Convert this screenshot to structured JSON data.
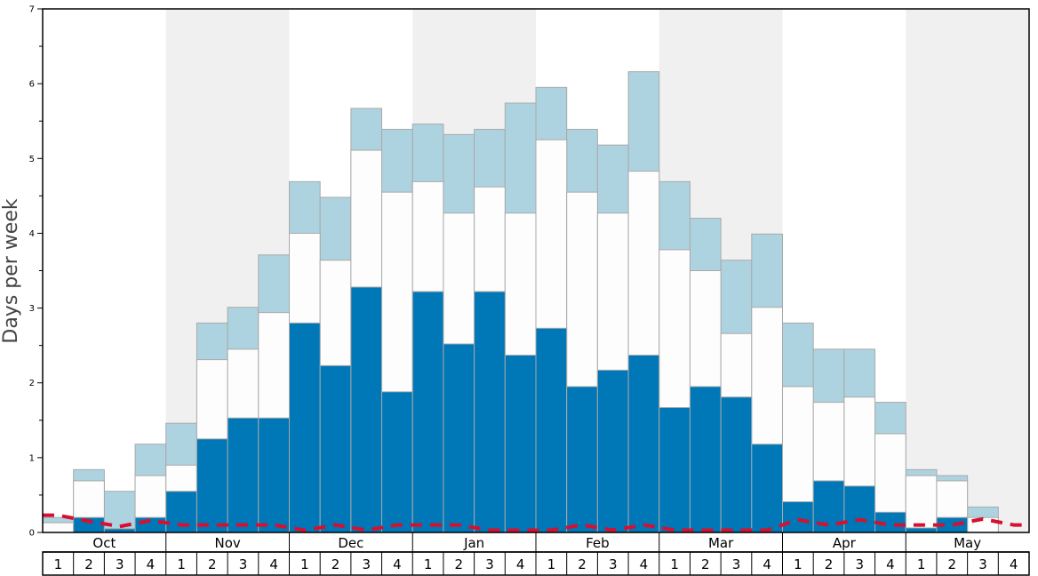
{
  "chart_data": {
    "type": "bar",
    "ylabel": "Days per week",
    "ylim": [
      0,
      7
    ],
    "y_ticks": [
      "0",
      "1",
      "2",
      "3",
      "4",
      "5",
      "6",
      "7"
    ],
    "months": [
      "Oct",
      "Nov",
      "Dec",
      "Jan",
      "Feb",
      "Mar",
      "Apr",
      "May"
    ],
    "week_labels": [
      "1",
      "2",
      "3",
      "4",
      "1",
      "2",
      "3",
      "4",
      "1",
      "2",
      "3",
      "4",
      "1",
      "2",
      "3",
      "4",
      "1",
      "2",
      "3",
      "4",
      "1",
      "2",
      "3",
      "4",
      "1",
      "2",
      "3",
      "4",
      "1",
      "2",
      "3",
      "4"
    ],
    "series": [
      {
        "values": [
          0.0,
          0.2,
          0.05,
          0.2,
          0.55,
          1.25,
          1.53,
          1.53,
          2.8,
          2.23,
          3.28,
          1.88,
          3.22,
          2.52,
          3.22,
          2.37,
          2.73,
          1.95,
          2.17,
          2.37,
          1.67,
          1.95,
          1.81,
          1.18,
          0.41,
          0.69,
          0.62,
          0.27,
          0.06,
          0.2,
          0.0,
          0.0
        ]
      },
      {
        "values": [
          0.13,
          0.69,
          0.05,
          0.76,
          0.9,
          2.31,
          2.45,
          2.94,
          4.0,
          3.64,
          5.11,
          4.55,
          4.69,
          4.27,
          4.62,
          4.27,
          5.25,
          4.55,
          4.27,
          4.83,
          3.78,
          3.5,
          2.66,
          3.01,
          1.95,
          1.74,
          1.81,
          1.32,
          0.76,
          0.69,
          0.2,
          0.0
        ]
      },
      {
        "values": [
          0.2,
          0.84,
          0.55,
          1.18,
          1.46,
          2.8,
          3.01,
          3.71,
          4.69,
          4.48,
          5.67,
          5.39,
          5.46,
          5.32,
          5.39,
          5.74,
          5.95,
          5.39,
          5.18,
          6.16,
          4.69,
          4.2,
          3.64,
          3.99,
          2.8,
          2.45,
          2.45,
          1.74,
          0.84,
          0.76,
          0.34,
          0.0
        ]
      },
      {
        "values": [
          0.23,
          0.15,
          0.08,
          0.16,
          0.1,
          0.1,
          0.1,
          0.1,
          0.03,
          0.1,
          0.03,
          0.1,
          0.1,
          0.1,
          0.03,
          0.03,
          0.03,
          0.1,
          0.03,
          0.1,
          0.03,
          0.03,
          0.03,
          0.03,
          0.17,
          0.1,
          0.17,
          0.1,
          0.1,
          0.1,
          0.18,
          0.1
        ]
      }
    ],
    "colors": {
      "series_1": "#0077b6",
      "series_2": "#fdfdfd",
      "series_3": "#add3e0",
      "series_4": "#d6102e",
      "bar_edge": "#a9a9a9",
      "shade": "#f0f0f0",
      "frame": "#000000"
    }
  }
}
